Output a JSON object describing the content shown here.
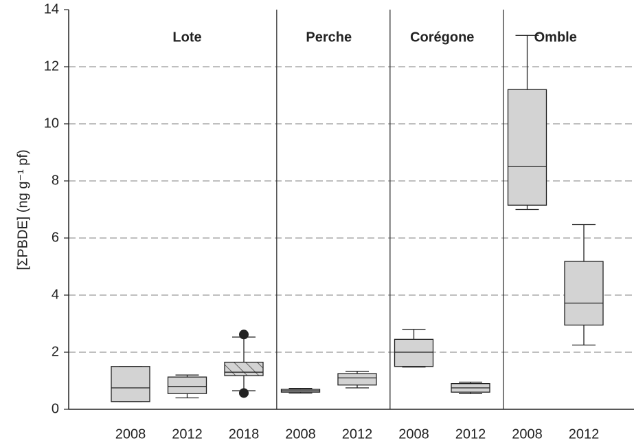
{
  "chart_data": {
    "type": "box",
    "y_label": "[ΣPBDE] (ng g⁻¹ pf)",
    "ylim": [
      0,
      14
    ],
    "yticks": [
      0,
      2,
      4,
      6,
      8,
      10,
      12,
      14
    ],
    "grid": true,
    "color": "#d3d3d3",
    "groups": [
      {
        "name": "Lote",
        "categories": [
          "2008",
          "2012",
          "2018"
        ],
        "boxes": [
          {
            "min": 0.27,
            "q1": 0.27,
            "median": 0.75,
            "q3": 1.5,
            "max": 1.5,
            "outliers": []
          },
          {
            "min": 0.4,
            "q1": 0.55,
            "median": 0.8,
            "q3": 1.13,
            "max": 1.2,
            "outliers": []
          },
          {
            "min": 0.65,
            "q1": 1.18,
            "median": 1.3,
            "q3": 1.65,
            "max": 2.53,
            "outliers": [
              0.57,
              2.62
            ],
            "hatch": true
          }
        ]
      },
      {
        "name": "Perche",
        "categories": [
          "2008",
          "2012"
        ],
        "boxes": [
          {
            "min": 0.57,
            "q1": 0.6,
            "median": 0.65,
            "q3": 0.7,
            "max": 0.73,
            "outliers": []
          },
          {
            "min": 0.75,
            "q1": 0.85,
            "median": 1.1,
            "q3": 1.25,
            "max": 1.33,
            "outliers": []
          }
        ]
      },
      {
        "name": "Corégone",
        "categories": [
          "2008",
          "2012"
        ],
        "boxes": [
          {
            "min": 1.48,
            "q1": 1.5,
            "median": 2.0,
            "q3": 2.45,
            "max": 2.8,
            "outliers": []
          },
          {
            "min": 0.55,
            "q1": 0.6,
            "median": 0.75,
            "q3": 0.9,
            "max": 0.95,
            "outliers": []
          }
        ]
      },
      {
        "name": "Omble",
        "categories": [
          "2008",
          "2012"
        ],
        "boxes": [
          {
            "min": 7.0,
            "q1": 7.15,
            "median": 8.5,
            "q3": 11.2,
            "max": 13.1,
            "outliers": []
          },
          {
            "min": 2.25,
            "q1": 2.95,
            "median": 3.72,
            "q3": 5.18,
            "max": 6.47,
            "outliers": []
          }
        ]
      }
    ]
  }
}
